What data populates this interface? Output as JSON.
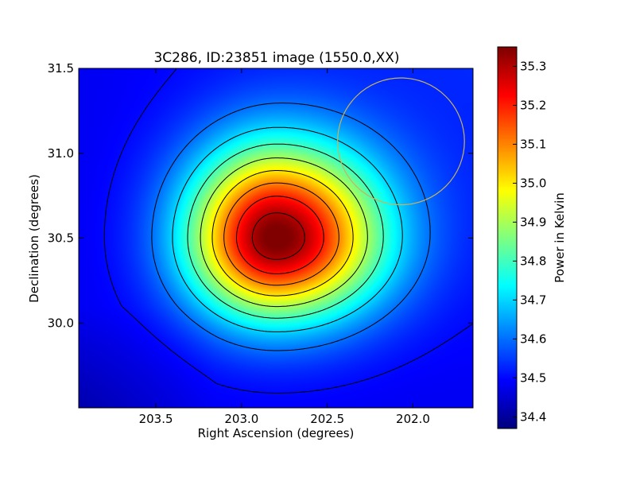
{
  "chart_data": {
    "type": "heatmap",
    "title": "3C286, ID:23851 image (1550.0,XX)",
    "xlabel": "Right Ascension (degrees)",
    "ylabel": "Declination (degrees)",
    "xlim": [
      203.95,
      201.65
    ],
    "ylim": [
      29.5,
      31.5
    ],
    "x_inverted": true,
    "xticks": [
      203.5,
      203.0,
      202.5,
      202.0
    ],
    "xtick_labels": [
      "203.5",
      "203.0",
      "202.5",
      "202.0"
    ],
    "yticks": [
      30.0,
      30.5,
      31.0,
      31.5
    ],
    "ytick_labels": [
      "30.0",
      "30.5",
      "31.0",
      "31.5"
    ],
    "colormap": "jet",
    "colorbar": {
      "label": "Power in Kelvin",
      "range": [
        34.37,
        35.35
      ],
      "ticks": [
        34.4,
        34.5,
        34.6,
        34.7,
        34.8,
        34.9,
        35.0,
        35.1,
        35.2,
        35.3
      ],
      "tick_labels": [
        "34.4",
        "34.5",
        "34.6",
        "34.7",
        "34.8",
        "34.9",
        "35.0",
        "35.1",
        "35.2",
        "35.3"
      ]
    },
    "source_peak": {
      "ra": 202.8,
      "dec": 30.5,
      "value": 35.35
    },
    "background_level": 34.48,
    "contour_levels": [
      34.5,
      34.6,
      34.7,
      34.8,
      34.9,
      35.0,
      35.1,
      35.2,
      35.3
    ],
    "circle_marker": {
      "ra": 202.07,
      "dec": 31.07,
      "radius_deg": 0.37,
      "color": "#c8b45a"
    },
    "grid": false,
    "legend": "none"
  }
}
